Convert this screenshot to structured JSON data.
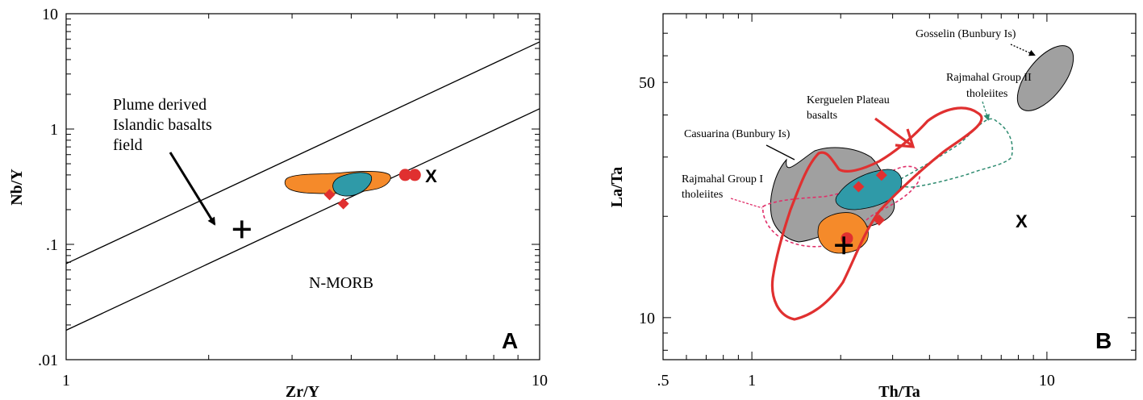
{
  "chart_data": [
    {
      "type": "scatter",
      "panel_label": "A",
      "xlabel": "Zr/Y",
      "ylabel": "Nb/Y",
      "xscale": "log",
      "yscale": "log",
      "xlim": [
        1,
        10
      ],
      "ylim": [
        0.01,
        10
      ],
      "x_tick_labels": [
        "1",
        "10"
      ],
      "y_tick_labels": [
        "10",
        "1",
        ".1",
        ".01"
      ],
      "reference_lines": [
        {
          "x": [
            1,
            10
          ],
          "y": [
            0.068,
            5.7
          ]
        },
        {
          "x": [
            1,
            10
          ],
          "y": [
            0.018,
            1.5
          ]
        }
      ],
      "annotations": {
        "plume_field": "Plume derived\nIslandic basalts\nfield",
        "nmorb": "N-MORB",
        "x_marker": "X"
      },
      "series": [
        {
          "marker": "diamond",
          "color": "#e03030",
          "points": [
            [
              3.6,
              0.27
            ],
            [
              3.85,
              0.225
            ]
          ]
        },
        {
          "marker": "circle",
          "color": "#e03030",
          "points": [
            [
              5.2,
              0.4
            ],
            [
              5.45,
              0.4
            ]
          ]
        },
        {
          "marker": "plus",
          "color": "#000000",
          "points": [
            [
              2.35,
              0.135
            ]
          ]
        },
        {
          "marker": "x-label",
          "color": "#000000",
          "points": [
            [
              5.9,
              0.4
            ]
          ]
        }
      ],
      "fields": [
        {
          "color": "#f58a2a"
        },
        {
          "color": "#2f9aa8"
        }
      ]
    },
    {
      "type": "scatter",
      "panel_label": "B",
      "xlabel": "Th/Ta",
      "ylabel": "La/Ta",
      "xscale": "log",
      "yscale": "log",
      "xlim": [
        0.5,
        20
      ],
      "ylim": [
        7.5,
        80
      ],
      "x_tick_labels": [
        ".5",
        "1",
        "10"
      ],
      "y_tick_labels": [
        "50",
        "10"
      ],
      "fields": [
        {
          "name": "Casuarina (Bunbury Is)",
          "color": "#a0a0a0"
        },
        {
          "name": "Gosselin (Bunbury Is)",
          "color": "#a0a0a0"
        },
        {
          "name": "Kerguelen Plateau basalts",
          "color": "#e03030"
        },
        {
          "name": "Rajmahal Group II tholeiites",
          "color": "#2e8b70"
        },
        {
          "name": "Rajmahal Group I tholeiites",
          "color": "#e0306a"
        }
      ],
      "series": [
        {
          "marker": "diamond",
          "color": "#e03030",
          "points": [
            [
              2.3,
              24.5
            ],
            [
              2.75,
              26.5
            ],
            [
              2.7,
              19.5
            ]
          ]
        },
        {
          "marker": "circle",
          "color": "#e03030",
          "points": [
            [
              2.1,
              17.2
            ]
          ]
        },
        {
          "marker": "plus",
          "color": "#000000",
          "points": [
            [
              2.05,
              16.4
            ]
          ]
        },
        {
          "marker": "x-label",
          "color": "#000000",
          "points": [
            [
              8.2,
              19.5
            ]
          ]
        }
      ],
      "annotations": {
        "x_marker": "X"
      }
    }
  ]
}
